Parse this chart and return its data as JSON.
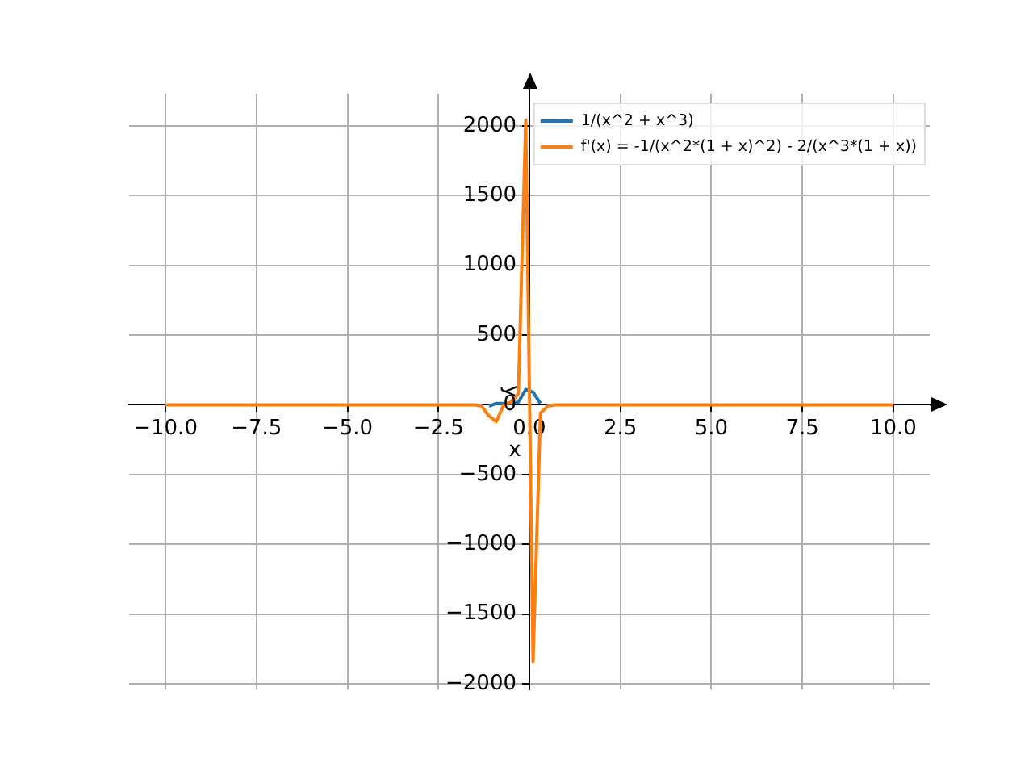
{
  "chart_data": {
    "type": "line",
    "xlabel": "x",
    "ylabel": "y",
    "series": [
      {
        "name": "1/(x^2 + x^3)",
        "color": "#1f77b4",
        "x": [
          -1.111,
          -0.909,
          -0.707,
          -0.505,
          -0.303,
          -0.101,
          0.101,
          0.303
        ],
        "values": [
          -10,
          10,
          10,
          10,
          20,
          110,
          90,
          10
        ]
      },
      {
        "name": "f'(x) = -1/(x^2*(1 + x)^2) - 2/(x^3*(1 + x))",
        "color": "#ff7f0e",
        "x": [
          -10,
          -5,
          -2,
          -1.5,
          -1.313,
          -1.111,
          -0.909,
          -0.707,
          -0.505,
          -0.303,
          -0.101,
          0.101,
          0.303,
          0.505,
          0.707,
          1,
          2,
          5,
          10
        ],
        "values": [
          0,
          0,
          0,
          0,
          -10,
          -80,
          -120,
          0,
          20,
          80,
          2040,
          -1840,
          -60,
          -10,
          0,
          0,
          0,
          0,
          0
        ]
      }
    ],
    "xlim": [
      -11,
      11
    ],
    "xticks": [
      {
        "value": -10,
        "label": "−10.0"
      },
      {
        "value": -7.5,
        "label": "−7.5"
      },
      {
        "value": -5,
        "label": "−5.0"
      },
      {
        "value": -2.5,
        "label": "−2.5"
      },
      {
        "value": 0,
        "label": "0.0"
      },
      {
        "value": 2.5,
        "label": "2.5"
      },
      {
        "value": 5,
        "label": "5.0"
      },
      {
        "value": 7.5,
        "label": "7.5"
      },
      {
        "value": 10,
        "label": "10.0"
      }
    ],
    "ylim": [
      -2040,
      2230
    ],
    "yticks": [
      {
        "value": -2000,
        "label": "−2000"
      },
      {
        "value": -1500,
        "label": "−1500"
      },
      {
        "value": -1000,
        "label": "−1000"
      },
      {
        "value": -500,
        "label": "−500"
      },
      0,
      500,
      1000,
      1500,
      2000
    ],
    "grid": true,
    "legend": "top right",
    "marker": "none",
    "line_style": "solid"
  }
}
